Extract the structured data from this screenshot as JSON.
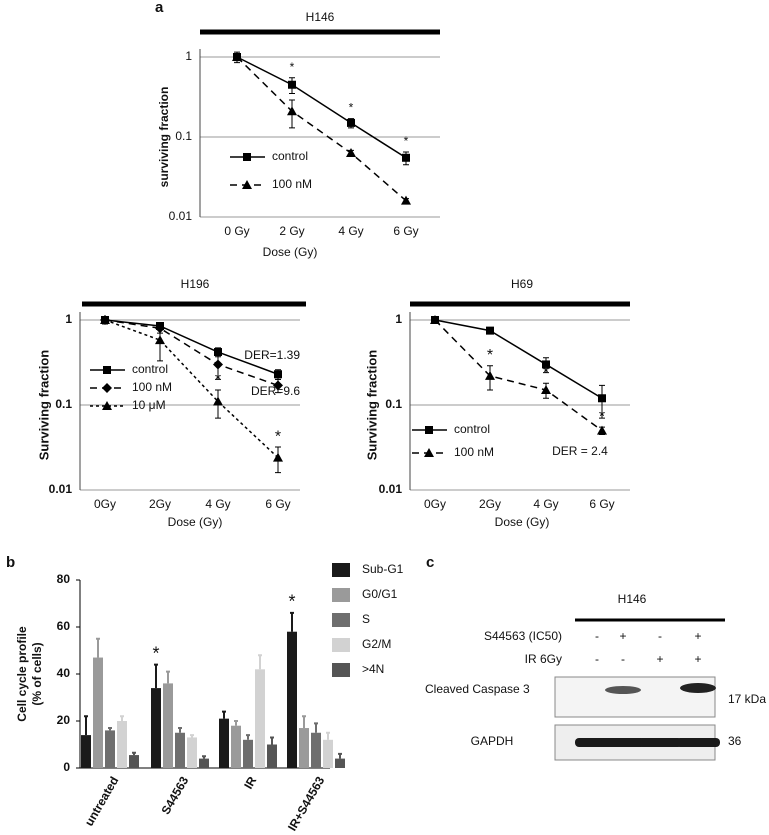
{
  "chart_data": [
    {
      "type": "line",
      "panel": "a",
      "title": "H146",
      "x_label": "Dose (Gy)",
      "y_label": "surviving fraction",
      "log_y": true,
      "grid": true,
      "categories": [
        "0 Gy",
        "2 Gy",
        "4 Gy",
        "6 Gy"
      ],
      "ylim": [
        0.01,
        1
      ],
      "yticks": [
        0.01,
        0.1,
        1
      ],
      "series": [
        {
          "name": "control",
          "color": "#000000",
          "marker": "square",
          "dash": "solid",
          "values": [
            1,
            0.45,
            0.15,
            0.055
          ],
          "errors": [
            0.15,
            0.1,
            0.02,
            0.01
          ],
          "markers": [
            null,
            "*",
            "*",
            "*"
          ]
        },
        {
          "name": "100 nM",
          "color": "#000000",
          "marker": "triangle",
          "dash": "dashed",
          "values": [
            1,
            0.21,
            0.063,
            0.016
          ],
          "errors": [
            0.1,
            0.08,
            0.005,
            0.001
          ]
        }
      ]
    },
    {
      "type": "line",
      "title": "H196",
      "x_label": "Dose (Gy)",
      "y_label": "Surviving  fraction",
      "log_y": true,
      "grid": true,
      "categories": [
        "0Gy",
        "2Gy",
        "4 Gy",
        "6 Gy"
      ],
      "ylim": [
        0.01,
        1
      ],
      "yticks": [
        0.01,
        0.1,
        1
      ],
      "annotations": [
        "DER=1.39",
        "DER=9.6"
      ],
      "series": [
        {
          "name": "control",
          "color": "#000000",
          "marker": "square",
          "dash": "solid",
          "values": [
            1,
            0.85,
            0.42,
            0.23
          ],
          "errors": [
            0.1,
            0.08,
            0.05,
            0.03
          ]
        },
        {
          "name": "100 nM",
          "color": "#000000",
          "marker": "diamond",
          "dash": "dashed",
          "values": [
            1,
            0.8,
            0.3,
            0.17
          ],
          "errors": [
            0.1,
            0.1,
            0.1,
            0.03
          ]
        },
        {
          "name": "10 μM",
          "color": "#000000",
          "marker": "triangle",
          "dash": "dotted",
          "values": [
            1,
            0.58,
            0.11,
            0.024
          ],
          "errors": [
            0.1,
            0.25,
            0.04,
            0.008
          ],
          "markers": [
            null,
            null,
            "*",
            "*"
          ]
        }
      ]
    },
    {
      "type": "line",
      "title": "H69",
      "x_label": "Dose (Gy)",
      "y_label": "Surviving  fraction",
      "log_y": true,
      "grid": true,
      "categories": [
        "0Gy",
        "2Gy",
        "4 Gy",
        "6 Gy"
      ],
      "ylim": [
        0.01,
        1
      ],
      "yticks": [
        0.01,
        0.1,
        1
      ],
      "annotations": [
        "DER = 2.4"
      ],
      "series": [
        {
          "name": "control",
          "color": "#000000",
          "marker": "square",
          "dash": "solid",
          "values": [
            1,
            0.75,
            0.3,
            0.12
          ],
          "errors": [
            0.05,
            0.05,
            0.06,
            0.05
          ]
        },
        {
          "name": "100 nM",
          "color": "#000000",
          "marker": "triangle",
          "dash": "dashed",
          "values": [
            1,
            0.22,
            0.15,
            0.05
          ],
          "errors": [
            0.05,
            0.07,
            0.03,
            0.005
          ],
          "markers": [
            null,
            "*",
            "*",
            "*"
          ]
        }
      ]
    },
    {
      "type": "bar",
      "panel": "b",
      "y_label": [
        "Cell cycle profile",
        "(% of cells)"
      ],
      "categories": [
        "untreated",
        "S44563",
        "IR",
        "IR+S44563"
      ],
      "ylim": [
        0,
        80
      ],
      "yticks": [
        0,
        20,
        40,
        60,
        80
      ],
      "markers": [
        null,
        "*",
        null,
        "*"
      ],
      "series": [
        {
          "name": "Sub-G1",
          "color": "#1a1a1a",
          "values": [
            14,
            34,
            21,
            58
          ],
          "errors": [
            8,
            10,
            3,
            8
          ]
        },
        {
          "name": "G0/G1",
          "color": "#9a9a9a",
          "values": [
            47,
            36,
            18,
            17
          ],
          "errors": [
            8,
            5,
            2,
            5
          ]
        },
        {
          "name": "S",
          "color": "#6e6e6e",
          "values": [
            16,
            15,
            12,
            15
          ],
          "errors": [
            1,
            2,
            2,
            4
          ]
        },
        {
          "name": "G2/M",
          "color": "#d2d2d2",
          "values": [
            20,
            13,
            42,
            12
          ],
          "errors": [
            2,
            1,
            6,
            3
          ]
        },
        {
          "name": ">4N",
          "color": "#555555",
          "values": [
            5.5,
            4,
            10,
            4
          ],
          "errors": [
            1,
            1,
            3,
            2
          ]
        }
      ]
    }
  ],
  "blot": {
    "panel": "c",
    "title": "H146",
    "rows": [
      {
        "label": "S44563 (IC50)",
        "values": [
          "-",
          "+",
          "-",
          "+"
        ]
      },
      {
        "label": "IR 6Gy",
        "values": [
          "-",
          "-",
          "+",
          "+"
        ]
      }
    ],
    "bands": [
      {
        "label": "Cleaved  Caspase 3",
        "size": "17 kDa"
      },
      {
        "label": "GAPDH",
        "size": "36"
      }
    ]
  }
}
